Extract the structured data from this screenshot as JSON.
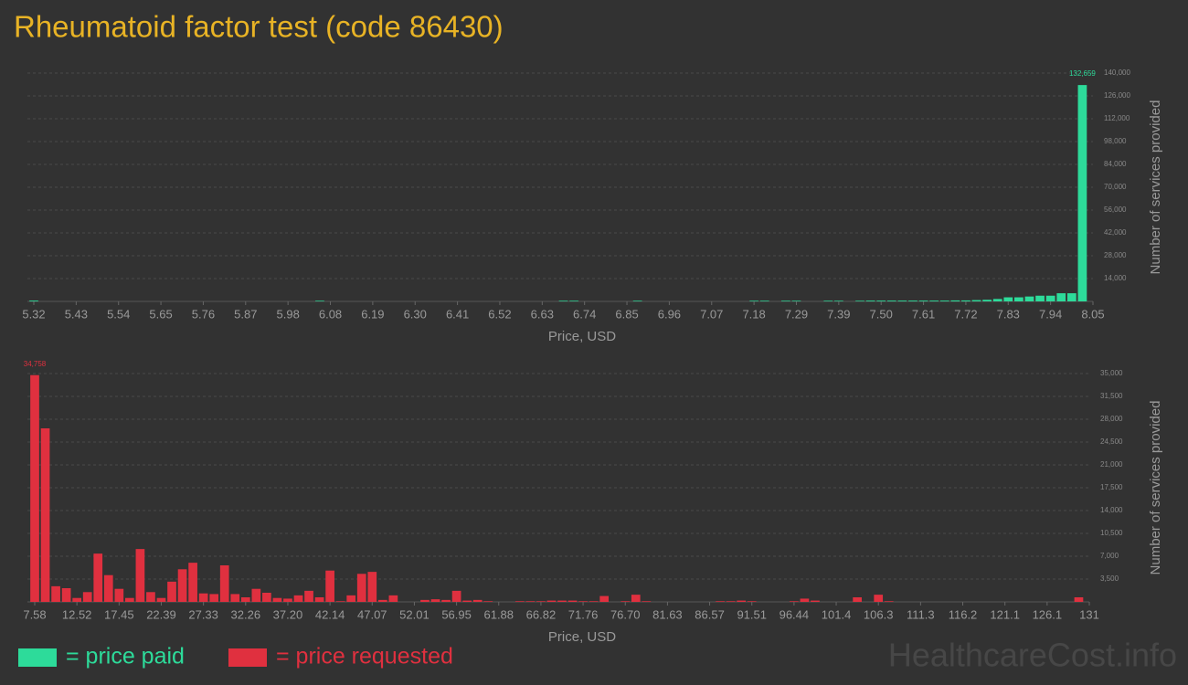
{
  "title": "Rheumatoid factor test (code 86430)",
  "watermark": "HealthcareCost.info",
  "chart_data": [
    {
      "type": "bar",
      "x_label": "Price, USD",
      "y_label": "Number of services provided",
      "grid": true,
      "categories": [
        "5.32",
        null,
        null,
        null,
        "5.43",
        null,
        null,
        null,
        "5.54",
        null,
        null,
        null,
        "5.65",
        null,
        null,
        null,
        "5.76",
        null,
        null,
        null,
        "5.87",
        null,
        null,
        null,
        "5.98",
        null,
        null,
        null,
        "6.08",
        null,
        null,
        null,
        "6.19",
        null,
        null,
        null,
        "6.30",
        null,
        null,
        null,
        "6.41",
        null,
        null,
        null,
        "6.52",
        null,
        null,
        null,
        "6.63",
        null,
        null,
        null,
        "6.74",
        null,
        null,
        null,
        "6.85",
        null,
        null,
        null,
        "6.96",
        null,
        null,
        null,
        "7.07",
        null,
        null,
        null,
        "7.18",
        null,
        null,
        null,
        "7.29",
        null,
        null,
        null,
        "7.39",
        null,
        null,
        null,
        "7.50",
        null,
        null,
        null,
        "7.61",
        null,
        null,
        null,
        "7.72",
        null,
        null,
        null,
        "7.83",
        null,
        null,
        null,
        "7.94",
        null,
        null,
        null,
        "8.05"
      ],
      "series": [
        {
          "name": "= price paid",
          "color": "#2ddb9a",
          "values": [
            500,
            0,
            0,
            0,
            0,
            0,
            0,
            0,
            0,
            0,
            0,
            0,
            0,
            0,
            0,
            0,
            0,
            0,
            0,
            0,
            0,
            0,
            0,
            0,
            0,
            0,
            0,
            400,
            0,
            0,
            0,
            0,
            0,
            0,
            0,
            0,
            0,
            0,
            0,
            0,
            0,
            0,
            0,
            0,
            0,
            0,
            0,
            0,
            0,
            0,
            400,
            400,
            0,
            0,
            0,
            0,
            0,
            400,
            0,
            0,
            0,
            0,
            0,
            0,
            0,
            0,
            0,
            0,
            400,
            400,
            0,
            400,
            400,
            0,
            0,
            400,
            400,
            0,
            400,
            500,
            500,
            500,
            500,
            500,
            500,
            500,
            500,
            600,
            600,
            800,
            1000,
            1500,
            2500,
            2500,
            3000,
            3500,
            3500,
            5000,
            5000,
            132659,
            0
          ],
          "value_labels": [
            null,
            null,
            null,
            null,
            null,
            null,
            null,
            null,
            null,
            null,
            null,
            null,
            null,
            null,
            null,
            null,
            null,
            null,
            null,
            null,
            null,
            null,
            null,
            null,
            null,
            null,
            null,
            null,
            null,
            null,
            null,
            null,
            null,
            null,
            null,
            null,
            null,
            null,
            null,
            null,
            null,
            null,
            null,
            null,
            null,
            null,
            null,
            null,
            null,
            null,
            null,
            null,
            null,
            null,
            null,
            null,
            null,
            null,
            null,
            null,
            null,
            null,
            null,
            null,
            null,
            null,
            null,
            null,
            null,
            null,
            null,
            null,
            null,
            null,
            null,
            null,
            null,
            null,
            null,
            null,
            null,
            null,
            null,
            null,
            null,
            null,
            null,
            null,
            null,
            null,
            null,
            null,
            null,
            null,
            null,
            null,
            null,
            null,
            null,
            "132,659",
            null
          ]
        }
      ],
      "ylim": [
        0,
        140000
      ],
      "yticks": [
        {
          "value": 14000,
          "label": "14,000"
        },
        {
          "value": 28000,
          "label": "28,000"
        },
        {
          "value": 42000,
          "label": "42,000"
        },
        {
          "value": 56000,
          "label": "56,000"
        },
        {
          "value": 70000,
          "label": "70,000"
        },
        {
          "value": 84000,
          "label": "84,000"
        },
        {
          "value": 98000,
          "label": "98,000"
        },
        {
          "value": 112000,
          "label": "112,000"
        },
        {
          "value": 126000,
          "label": "126,000"
        },
        {
          "value": 140000,
          "label": "140,000"
        }
      ]
    },
    {
      "type": "bar",
      "x_label": "Price, USD",
      "y_label": "Number of services provided",
      "grid": true,
      "categories": [
        "7.58",
        null,
        null,
        null,
        "12.52",
        null,
        null,
        null,
        "17.45",
        null,
        null,
        null,
        "22.39",
        null,
        null,
        null,
        "27.33",
        null,
        null,
        null,
        "32.26",
        null,
        null,
        null,
        "37.20",
        null,
        null,
        null,
        "42.14",
        null,
        null,
        null,
        "47.07",
        null,
        null,
        null,
        "52.01",
        null,
        null,
        null,
        "56.95",
        null,
        null,
        null,
        "61.88",
        null,
        null,
        null,
        "66.82",
        null,
        null,
        null,
        "71.76",
        null,
        null,
        null,
        "76.70",
        null,
        null,
        null,
        "81.63",
        null,
        null,
        null,
        "86.57",
        null,
        null,
        null,
        "91.51",
        null,
        null,
        null,
        "96.44",
        null,
        null,
        null,
        "101.4",
        null,
        null,
        null,
        "106.3",
        null,
        null,
        null,
        "111.3",
        null,
        null,
        null,
        "116.2",
        null,
        null,
        null,
        "121.1",
        null,
        null,
        null,
        "126.1",
        null,
        null,
        null,
        "131"
      ],
      "series": [
        {
          "name": "= price requested",
          "color": "#e0303f",
          "values": [
            34758,
            26600,
            2400,
            2100,
            600,
            1500,
            7400,
            4100,
            2000,
            600,
            8100,
            1500,
            600,
            3100,
            5000,
            6000,
            1300,
            1200,
            5600,
            1200,
            700,
            2000,
            1400,
            600,
            500,
            1000,
            1700,
            700,
            4800,
            100,
            1000,
            4300,
            4600,
            300,
            1000,
            0,
            0,
            300,
            400,
            300,
            1700,
            200,
            300,
            100,
            0,
            0,
            100,
            100,
            100,
            200,
            200,
            200,
            100,
            100,
            900,
            0,
            100,
            1100,
            100,
            0,
            0,
            0,
            0,
            0,
            0,
            100,
            100,
            200,
            100,
            0,
            0,
            0,
            100,
            500,
            200,
            0,
            0,
            0,
            700,
            0,
            1100,
            100,
            0,
            0,
            0,
            0,
            0,
            0,
            0,
            0,
            0,
            0,
            0,
            0,
            0,
            0,
            0,
            0,
            0,
            700,
            0
          ],
          "value_labels": [
            "34,758",
            null,
            null,
            null,
            null,
            null,
            null,
            null,
            null,
            null,
            null,
            null,
            null,
            null,
            null,
            null,
            null,
            null,
            null,
            null,
            null,
            null,
            null,
            null,
            null,
            null,
            null,
            null,
            null,
            null,
            null,
            null,
            null,
            null,
            null,
            null,
            null,
            null,
            null,
            null,
            null,
            null,
            null,
            null,
            null,
            null,
            null,
            null,
            null,
            null,
            null,
            null,
            null,
            null,
            null,
            null,
            null,
            null,
            null,
            null,
            null,
            null,
            null,
            null,
            null,
            null,
            null,
            null,
            null,
            null,
            null,
            null,
            null,
            null,
            null,
            null,
            null,
            null,
            null,
            null,
            null,
            null,
            null,
            null,
            null,
            null,
            null,
            null,
            null,
            null,
            null,
            null,
            null,
            null,
            null,
            null,
            null,
            null,
            null,
            null,
            null
          ]
        }
      ],
      "ylim": [
        0,
        35000
      ],
      "yticks": [
        {
          "value": 3500,
          "label": "3,500"
        },
        {
          "value": 7000,
          "label": "7,000"
        },
        {
          "value": 10500,
          "label": "10,500"
        },
        {
          "value": 14000,
          "label": "14,000"
        },
        {
          "value": 17500,
          "label": "17,500"
        },
        {
          "value": 21000,
          "label": "21,000"
        },
        {
          "value": 24500,
          "label": "24,500"
        },
        {
          "value": 28000,
          "label": "28,000"
        },
        {
          "value": 31500,
          "label": "31,500"
        },
        {
          "value": 35000,
          "label": "35,000"
        }
      ]
    }
  ]
}
